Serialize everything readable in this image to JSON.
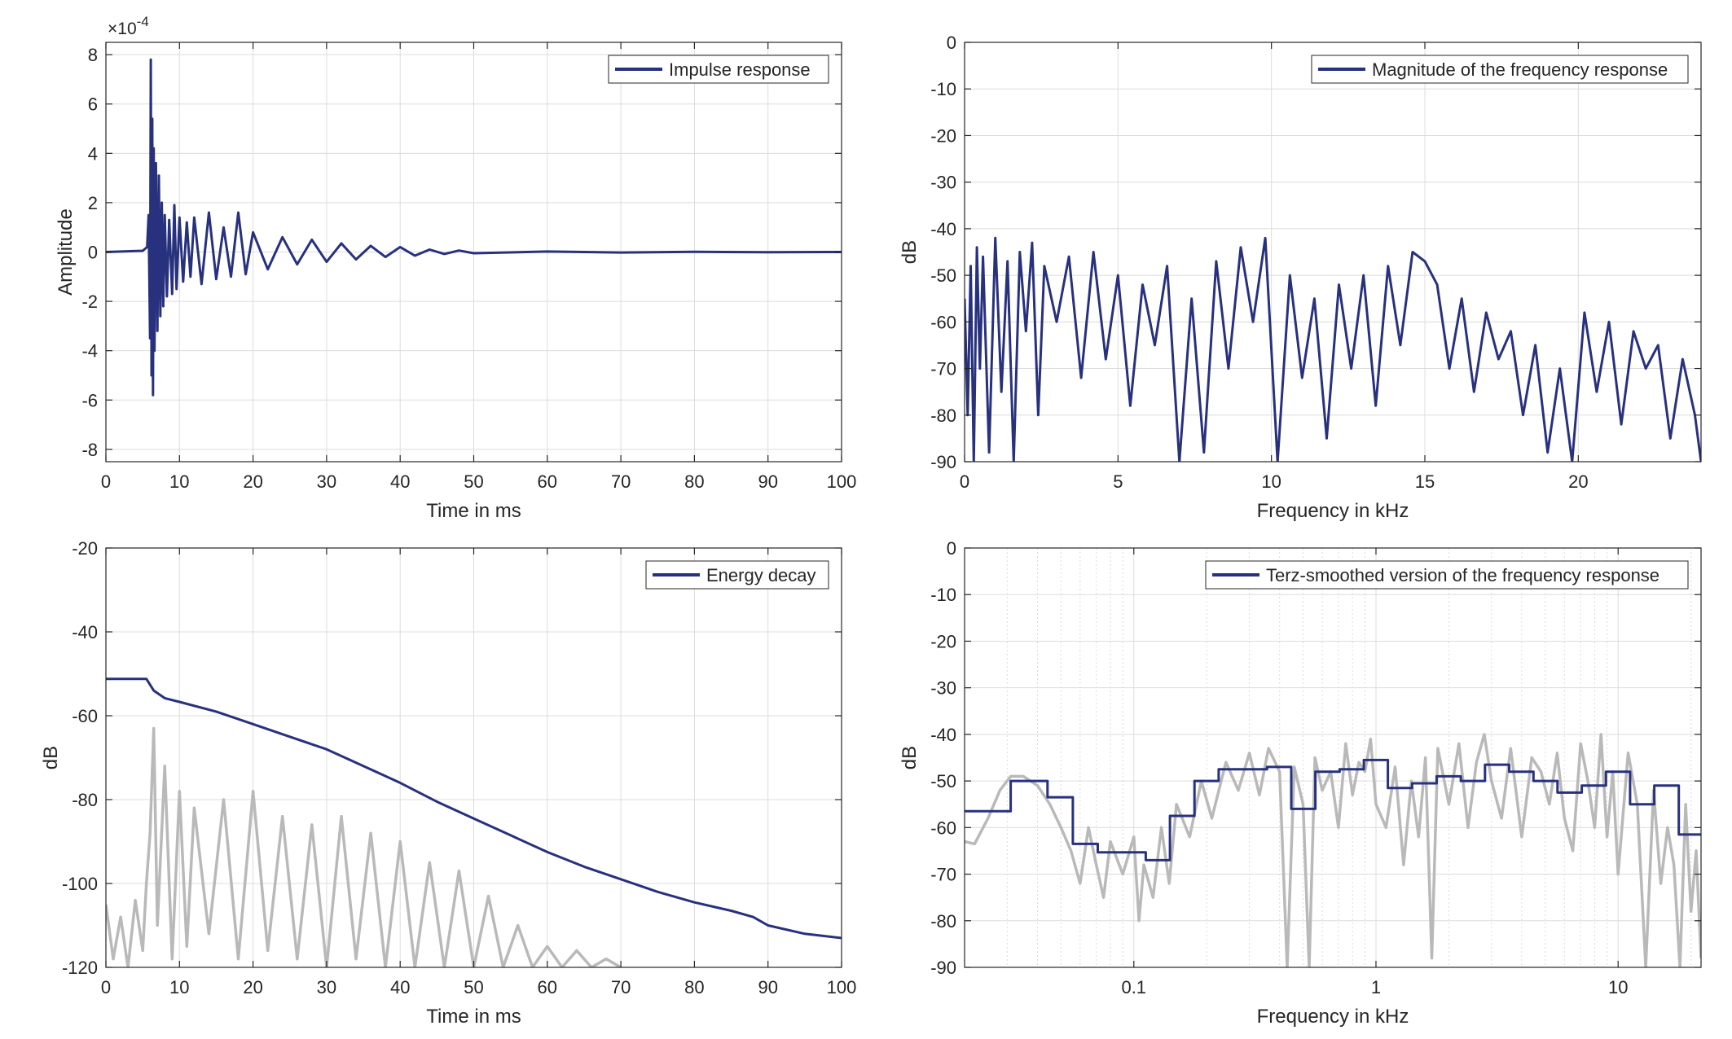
{
  "colors": {
    "series": "#27317e",
    "reference": "#b9b9b9",
    "grid": "#dcdcdc",
    "axis": "#262626"
  },
  "chart_data": [
    {
      "id": "impulse",
      "type": "line",
      "xlabel": "Time in ms",
      "ylabel": "Amplitude",
      "exponent_label": "×10",
      "exponent_power": "-4",
      "xlim": [
        0,
        100
      ],
      "ylim": [
        -8.5,
        8.5
      ],
      "xticks": [
        0,
        10,
        20,
        30,
        40,
        50,
        60,
        70,
        80,
        90,
        100
      ],
      "yticks": [
        -8,
        -6,
        -4,
        -2,
        0,
        2,
        4,
        6,
        8
      ],
      "xscale": "linear",
      "grid": true,
      "legend_position": "top-right",
      "series": [
        {
          "name": "Impulse response",
          "role": "main",
          "x": [
            0,
            5,
            5.6,
            5.8,
            6.0,
            6.1,
            6.2,
            6.3,
            6.4,
            6.5,
            6.6,
            6.8,
            7.0,
            7.2,
            7.4,
            7.6,
            7.8,
            8.0,
            8.3,
            8.6,
            9.0,
            9.3,
            9.6,
            10.0,
            10.5,
            11.0,
            11.5,
            12.0,
            13,
            14,
            15,
            16,
            17,
            18,
            19,
            20,
            22,
            24,
            26,
            28,
            30,
            32,
            34,
            36,
            38,
            40,
            42,
            44,
            46,
            48,
            50,
            60,
            70,
            80,
            90,
            100
          ],
          "y": [
            0,
            0.05,
            0.2,
            1.5,
            -3.5,
            7.8,
            -5.0,
            5.4,
            -5.8,
            4.2,
            -4.0,
            3.6,
            -3.2,
            3.1,
            -2.6,
            2.0,
            -2.2,
            1.5,
            -1.8,
            1.3,
            -1.7,
            1.9,
            -1.5,
            1.4,
            -1.2,
            1.2,
            -1.0,
            1.4,
            -1.3,
            1.6,
            -1.1,
            1.0,
            -1.0,
            1.6,
            -0.9,
            0.8,
            -0.7,
            0.6,
            -0.5,
            0.5,
            -0.4,
            0.35,
            -0.3,
            0.25,
            -0.2,
            0.2,
            -0.15,
            0.1,
            -0.08,
            0.06,
            -0.05,
            0.02,
            -0.02,
            0.01,
            -0.01,
            0
          ]
        }
      ]
    },
    {
      "id": "magnitude",
      "type": "line",
      "xlabel": "Frequency in kHz",
      "ylabel": "dB",
      "xlim": [
        0,
        24
      ],
      "ylim": [
        -90,
        0
      ],
      "xticks": [
        0,
        5,
        10,
        15,
        20
      ],
      "yticks": [
        -90,
        -80,
        -70,
        -60,
        -50,
        -40,
        -30,
        -20,
        -10,
        0
      ],
      "xscale": "linear",
      "grid": true,
      "legend_position": "top-right",
      "series": [
        {
          "name": "Magnitude of the frequency response",
          "role": "main",
          "x": [
            0,
            0.1,
            0.2,
            0.3,
            0.4,
            0.5,
            0.6,
            0.8,
            1.0,
            1.2,
            1.4,
            1.6,
            1.8,
            2.0,
            2.2,
            2.4,
            2.6,
            3.0,
            3.4,
            3.8,
            4.2,
            4.6,
            5.0,
            5.4,
            5.8,
            6.2,
            6.6,
            7.0,
            7.4,
            7.8,
            8.2,
            8.6,
            9.0,
            9.4,
            9.8,
            10.2,
            10.6,
            11.0,
            11.4,
            11.8,
            12.2,
            12.6,
            13.0,
            13.4,
            13.8,
            14.2,
            14.6,
            15.0,
            15.4,
            15.8,
            16.2,
            16.6,
            17.0,
            17.4,
            17.8,
            18.2,
            18.6,
            19.0,
            19.4,
            19.8,
            20.2,
            20.6,
            21.0,
            21.4,
            21.8,
            22.2,
            22.6,
            23.0,
            23.4,
            23.8,
            24.0
          ],
          "y": [
            -55,
            -80,
            -48,
            -90,
            -44,
            -70,
            -46,
            -88,
            -42,
            -75,
            -47,
            -90,
            -45,
            -62,
            -43,
            -80,
            -48,
            -60,
            -46,
            -72,
            -45,
            -68,
            -50,
            -78,
            -52,
            -65,
            -48,
            -90,
            -55,
            -88,
            -47,
            -70,
            -44,
            -60,
            -42,
            -90,
            -50,
            -72,
            -55,
            -85,
            -52,
            -70,
            -50,
            -78,
            -48,
            -65,
            -45,
            -47,
            -52,
            -70,
            -55,
            -75,
            -58,
            -68,
            -62,
            -80,
            -65,
            -88,
            -70,
            -90,
            -58,
            -75,
            -60,
            -82,
            -62,
            -70,
            -65,
            -85,
            -68,
            -80,
            -90
          ]
        }
      ]
    },
    {
      "id": "energy",
      "type": "line",
      "xlabel": "Time in ms",
      "ylabel": "dB",
      "xlim": [
        0,
        100
      ],
      "ylim": [
        -120,
        -20
      ],
      "xticks": [
        0,
        10,
        20,
        30,
        40,
        50,
        60,
        70,
        80,
        90,
        100
      ],
      "yticks": [
        -120,
        -100,
        -80,
        -60,
        -40,
        -20
      ],
      "xscale": "linear",
      "grid": true,
      "legend_position": "top-right",
      "series": [
        {
          "name": "Energy decay",
          "role": "main",
          "x": [
            0,
            5.5,
            6.5,
            8,
            10,
            15,
            20,
            25,
            30,
            35,
            40,
            45,
            50,
            55,
            60,
            65,
            70,
            75,
            80,
            85,
            88,
            90,
            95,
            100
          ],
          "y": [
            -51.2,
            -51.2,
            -54,
            -55.8,
            -56.7,
            -59,
            -62,
            -65,
            -68,
            -72,
            -76,
            -80.5,
            -84.5,
            -88.5,
            -92.5,
            -96,
            -99,
            -102,
            -104.5,
            -106.5,
            -108,
            -110,
            -112,
            -113
          ]
        },
        {
          "name": "",
          "role": "reference",
          "x": [
            0,
            1,
            2,
            3,
            4,
            5,
            5.5,
            6,
            6.5,
            7,
            8,
            9,
            10,
            11,
            12,
            14,
            16,
            18,
            20,
            22,
            24,
            26,
            28,
            30,
            32,
            34,
            36,
            38,
            40,
            42,
            44,
            46,
            48,
            50,
            52,
            54,
            56,
            58,
            60,
            62,
            64,
            66,
            68,
            70
          ],
          "y": [
            -105,
            -118,
            -108,
            -120,
            -104,
            -116,
            -100,
            -88,
            -63,
            -110,
            -72,
            -118,
            -78,
            -115,
            -82,
            -112,
            -80,
            -118,
            -78,
            -116,
            -84,
            -118,
            -86,
            -120,
            -84,
            -118,
            -88,
            -120,
            -90,
            -120,
            -95,
            -120,
            -97,
            -120,
            -103,
            -120,
            -110,
            -120,
            -115,
            -120,
            -116,
            -120,
            -118,
            -120
          ]
        }
      ]
    },
    {
      "id": "terz",
      "type": "line",
      "xlabel": "Frequency in kHz",
      "ylabel": "dB",
      "xlim": [
        0.02,
        22
      ],
      "ylim": [
        -90,
        0
      ],
      "xticks": [
        0.1,
        1,
        10
      ],
      "xtick_labels": [
        "0.1",
        "1",
        "10"
      ],
      "yticks": [
        -90,
        -80,
        -70,
        -60,
        -50,
        -40,
        -30,
        -20,
        -10,
        0
      ],
      "xscale": "log",
      "grid": true,
      "legend_position": "top-right",
      "series": [
        {
          "name": "Terz-smoothed version of the frequency response",
          "role": "main",
          "x": [
            0.02,
            0.031,
            0.031,
            0.044,
            0.044,
            0.056,
            0.056,
            0.071,
            0.071,
            0.112,
            0.112,
            0.141,
            0.141,
            0.178,
            0.178,
            0.224,
            0.224,
            0.355,
            0.355,
            0.447,
            0.447,
            0.562,
            0.562,
            0.708,
            0.708,
            0.891,
            0.891,
            1.12,
            1.12,
            1.41,
            1.41,
            1.78,
            1.78,
            2.24,
            2.24,
            2.82,
            2.82,
            3.55,
            3.55,
            4.47,
            4.47,
            5.62,
            5.62,
            7.08,
            7.08,
            8.91,
            8.91,
            11.2,
            11.2,
            14.1,
            14.1,
            17.8,
            17.8,
            22
          ],
          "y": [
            -56.5,
            -56.5,
            -50,
            -50,
            -53.5,
            -53.5,
            -63.5,
            -63.5,
            -65.3,
            -65.3,
            -67,
            -67,
            -57.5,
            -57.5,
            -50,
            -50,
            -47.5,
            -47.5,
            -47,
            -47,
            -56,
            -56,
            -48,
            -48,
            -47.5,
            -47.5,
            -45.5,
            -45.5,
            -51.5,
            -51.5,
            -50.5,
            -50.5,
            -49,
            -49,
            -50,
            -50,
            -46.5,
            -46.5,
            -48,
            -48,
            -50,
            -50,
            -52.5,
            -52.5,
            -51,
            -51,
            -48,
            -48,
            -55,
            -55,
            -51,
            -51,
            -61.5,
            -61.5
          ]
        },
        {
          "name": "",
          "role": "reference",
          "x": [
            0.02,
            0.022,
            0.025,
            0.028,
            0.031,
            0.035,
            0.04,
            0.045,
            0.05,
            0.055,
            0.06,
            0.065,
            0.07,
            0.075,
            0.08,
            0.09,
            0.1,
            0.105,
            0.11,
            0.12,
            0.13,
            0.14,
            0.15,
            0.17,
            0.19,
            0.21,
            0.24,
            0.27,
            0.3,
            0.33,
            0.36,
            0.4,
            0.43,
            0.46,
            0.5,
            0.53,
            0.56,
            0.6,
            0.65,
            0.7,
            0.75,
            0.8,
            0.85,
            0.9,
            0.95,
            1.0,
            1.1,
            1.2,
            1.3,
            1.4,
            1.5,
            1.6,
            1.7,
            1.8,
            2.0,
            2.2,
            2.4,
            2.6,
            2.8,
            3.0,
            3.3,
            3.6,
            4.0,
            4.4,
            4.8,
            5.2,
            5.6,
            6.0,
            6.5,
            7.0,
            7.5,
            8.0,
            8.5,
            9.0,
            9.5,
            10,
            11,
            12,
            13,
            14,
            15,
            16,
            17,
            18,
            19,
            20,
            21,
            22
          ],
          "y": [
            -63,
            -63.5,
            -58,
            -52,
            -49,
            -49,
            -51,
            -55,
            -60,
            -65,
            -72,
            -60,
            -68,
            -75,
            -63,
            -70,
            -62,
            -80,
            -68,
            -75,
            -60,
            -72,
            -55,
            -62,
            -50,
            -58,
            -46,
            -52,
            -44,
            -53,
            -43,
            -48,
            -90,
            -47,
            -55,
            -90,
            -45,
            -52,
            -48,
            -60,
            -42,
            -53,
            -46,
            -48,
            -41,
            -55,
            -60,
            -47,
            -68,
            -50,
            -62,
            -45,
            -88,
            -43,
            -55,
            -42,
            -60,
            -46,
            -40,
            -50,
            -58,
            -43,
            -62,
            -45,
            -48,
            -55,
            -44,
            -58,
            -65,
            -42,
            -50,
            -60,
            -40,
            -62,
            -48,
            -70,
            -44,
            -55,
            -90,
            -52,
            -72,
            -60,
            -68,
            -90,
            -55,
            -78,
            -65,
            -88
          ]
        }
      ]
    }
  ]
}
